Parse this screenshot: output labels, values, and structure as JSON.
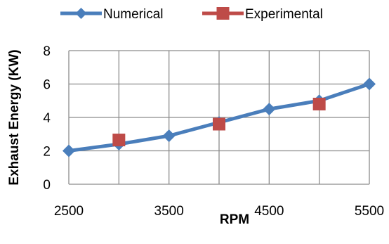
{
  "chart_data": {
    "type": "line",
    "xlabel": "RPM",
    "ylabel": "Exhaust Energy (KW)",
    "xlim": [
      2500,
      5500
    ],
    "ylim": [
      0,
      8
    ],
    "x_ticks": [
      "2500",
      "3500",
      "4500",
      "5500"
    ],
    "y_ticks": [
      "0",
      "2",
      "4",
      "6",
      "8"
    ],
    "grid": true,
    "legend_position": "top",
    "series": [
      {
        "name": "Numerical",
        "color": "#4a7ebb",
        "marker": "diamond",
        "line": true,
        "x": [
          2500,
          3000,
          3500,
          4000,
          4500,
          5000,
          5500
        ],
        "y": [
          2.0,
          2.4,
          2.9,
          3.7,
          4.5,
          5.0,
          6.0
        ]
      },
      {
        "name": "Experimental",
        "color": "#be4b48",
        "marker": "square",
        "line": false,
        "x": [
          3000,
          4000,
          5000
        ],
        "y": [
          2.65,
          3.6,
          4.8
        ]
      }
    ]
  }
}
